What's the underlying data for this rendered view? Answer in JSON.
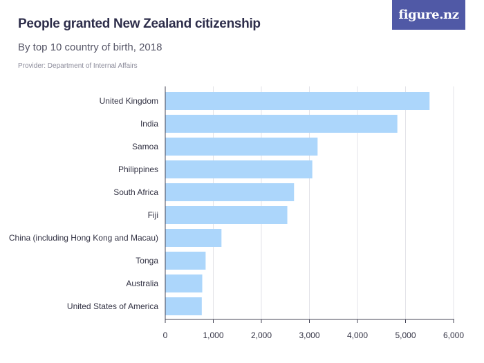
{
  "header": {
    "title": "People granted New Zealand citizenship",
    "subtitle": "By top 10 country of birth, 2018",
    "provider": "Provider: Department of Internal Affairs",
    "logo_text": "figure.nz"
  },
  "colors": {
    "bar": "#acd6fb",
    "grid": "#e3e3e8",
    "axis": "#444455",
    "logo_bg": "#5059a6"
  },
  "chart_data": {
    "type": "bar",
    "orientation": "horizontal",
    "title": "People granted New Zealand citizenship",
    "subtitle": "By top 10 country of birth, 2018",
    "categories": [
      "United Kingdom",
      "India",
      "Samoa",
      "Philippines",
      "South Africa",
      "Fiji",
      "China (including Hong Kong and Macau)",
      "Tonga",
      "Australia",
      "United States of America"
    ],
    "values": [
      5500,
      4830,
      3170,
      3060,
      2680,
      2540,
      1170,
      840,
      770,
      760
    ],
    "xlim": [
      0,
      6000
    ],
    "ticks": [
      0,
      1000,
      2000,
      3000,
      4000,
      5000,
      6000
    ],
    "tick_labels": [
      "0",
      "1,000",
      "2,000",
      "3,000",
      "4,000",
      "5,000",
      "6,000"
    ],
    "grid": true,
    "legend": "none"
  }
}
